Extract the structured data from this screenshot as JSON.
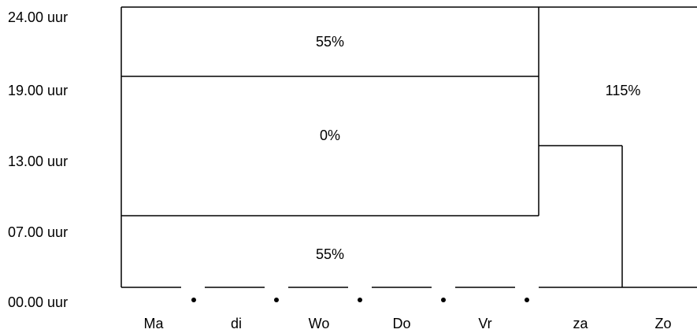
{
  "time_labels": [
    "24.00 uur",
    "19.00 uur",
    "13.00 uur",
    "07.00 uur",
    "00.00 uur"
  ],
  "day_labels": [
    "Ma",
    "di",
    "Wo",
    "Do",
    "Vr",
    "za",
    "Zo"
  ],
  "regions": {
    "weekday_evening": "55%",
    "weekday_day": "0%",
    "weekday_night": "55%",
    "weekend": "115%"
  },
  "colors": {
    "line": "#000000",
    "background": "#ffffff"
  }
}
